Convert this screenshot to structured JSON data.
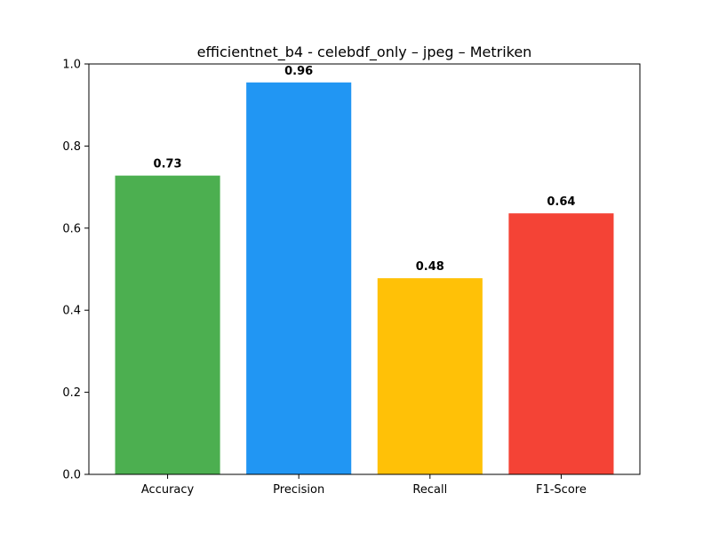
{
  "chart_data": {
    "type": "bar",
    "title": "efficientnet_b4 - celebdf_only – jpeg – Metriken",
    "xlabel": "",
    "ylabel": "",
    "categories": [
      "Accuracy",
      "Precision",
      "Recall",
      "F1-Score"
    ],
    "values": [
      0.728,
      0.955,
      0.478,
      0.636
    ],
    "value_labels": [
      "0.73",
      "0.96",
      "0.48",
      "0.64"
    ],
    "colors": [
      "#4caf50",
      "#2196f3",
      "#ffc107",
      "#f44336"
    ],
    "ylim": [
      0,
      1.0
    ],
    "yticks": [
      0.0,
      0.2,
      0.4,
      0.6,
      0.8,
      1.0
    ],
    "ytick_labels": [
      "0.0",
      "0.2",
      "0.4",
      "0.6",
      "0.8",
      "1.0"
    ],
    "grid": false,
    "legend": false
  }
}
